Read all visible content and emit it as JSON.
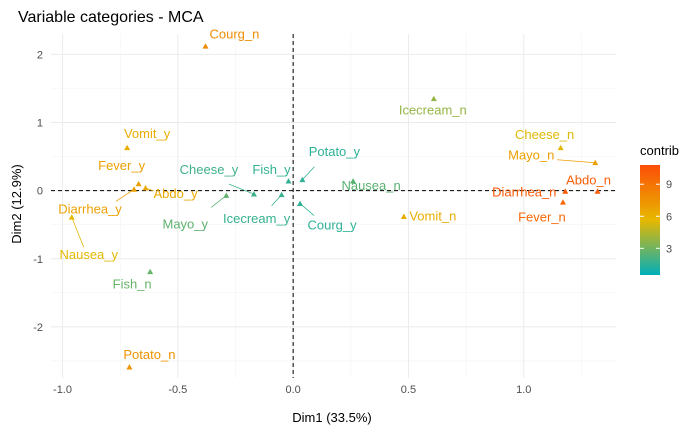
{
  "chart_data": {
    "type": "scatter",
    "title": "Variable categories - MCA",
    "xlabel": "Dim1 (33.5%)",
    "ylabel": "Dim2 (12.9%)",
    "xlim": [
      -1.05,
      1.4
    ],
    "ylim": [
      -2.75,
      2.3
    ],
    "xticks": [
      -1.0,
      -0.5,
      0.0,
      0.5,
      1.0
    ],
    "xtick_labels": [
      "-1.0",
      "-0.5",
      "0.0",
      "0.5",
      "1.0"
    ],
    "yticks": [
      -2,
      -1,
      0,
      1,
      2
    ],
    "ytick_labels": [
      "-2",
      "-1",
      "0",
      "1",
      "2"
    ],
    "grid": true,
    "reference_lines": {
      "x": 0,
      "y": 0,
      "style": "dashed"
    },
    "legend": {
      "title": "contrib",
      "placement": "right",
      "ticks": [
        3,
        6,
        9
      ],
      "tick_labels": [
        "3",
        "6",
        "9"
      ],
      "range": [
        0.5,
        10.8
      ],
      "gradient": [
        "#00AFBB",
        "#E7B800",
        "#FC4E07"
      ]
    },
    "points": [
      {
        "label": "Courg_n",
        "x": -0.38,
        "y": 2.12,
        "contrib": 7.8
      },
      {
        "label": "Icecream_n",
        "x": 0.61,
        "y": 1.35,
        "contrib": 3.8
      },
      {
        "label": "Vomit_y",
        "x": -0.72,
        "y": 0.63,
        "contrib": 6.2
      },
      {
        "label": "Cheese_n",
        "x": 1.16,
        "y": 0.63,
        "contrib": 5.5
      },
      {
        "label": "Mayo_n",
        "x": 1.31,
        "y": 0.41,
        "contrib": 6.8
      },
      {
        "label": "Potato_y",
        "x": 0.04,
        "y": 0.16,
        "contrib": 1.5
      },
      {
        "label": "Fish_y",
        "x": -0.02,
        "y": 0.14,
        "contrib": 1.6
      },
      {
        "label": "Nausea_n",
        "x": 0.26,
        "y": 0.14,
        "contrib": 2.5
      },
      {
        "label": "Fever_y",
        "x": -0.67,
        "y": 0.1,
        "contrib": 6.8
      },
      {
        "label": "Abdo_y",
        "x": -0.64,
        "y": 0.04,
        "contrib": 6.4
      },
      {
        "label": "Cheese_y",
        "x": -0.17,
        "y": -0.05,
        "contrib": 1.9
      },
      {
        "label": "Mayo_y",
        "x": -0.29,
        "y": -0.07,
        "contrib": 2.6
      },
      {
        "label": "Icecream_y",
        "x": -0.05,
        "y": -0.06,
        "contrib": 1.7
      },
      {
        "label": "Courg_y",
        "x": 0.03,
        "y": -0.19,
        "contrib": 1.5
      },
      {
        "label": "Abdo_n",
        "x": 1.32,
        "y": -0.01,
        "contrib": 10.0
      },
      {
        "label": "Diarrhea_n",
        "x": 1.18,
        "y": -0.01,
        "contrib": 10.2
      },
      {
        "label": "Fever_n",
        "x": 1.17,
        "y": -0.17,
        "contrib": 9.6
      },
      {
        "label": "Vomit_n",
        "x": 0.48,
        "y": -0.38,
        "contrib": 6.2
      },
      {
        "label": "Diarrhea_y",
        "x": -0.69,
        "y": 0.02,
        "contrib": 6.8
      },
      {
        "label": "Nausea_y",
        "x": -0.96,
        "y": -0.39,
        "contrib": 5.6
      },
      {
        "label": "Fish_n",
        "x": -0.62,
        "y": -1.19,
        "contrib": 2.8
      },
      {
        "label": "Potato_n",
        "x": -0.71,
        "y": -2.59,
        "contrib": 7.5
      }
    ]
  }
}
